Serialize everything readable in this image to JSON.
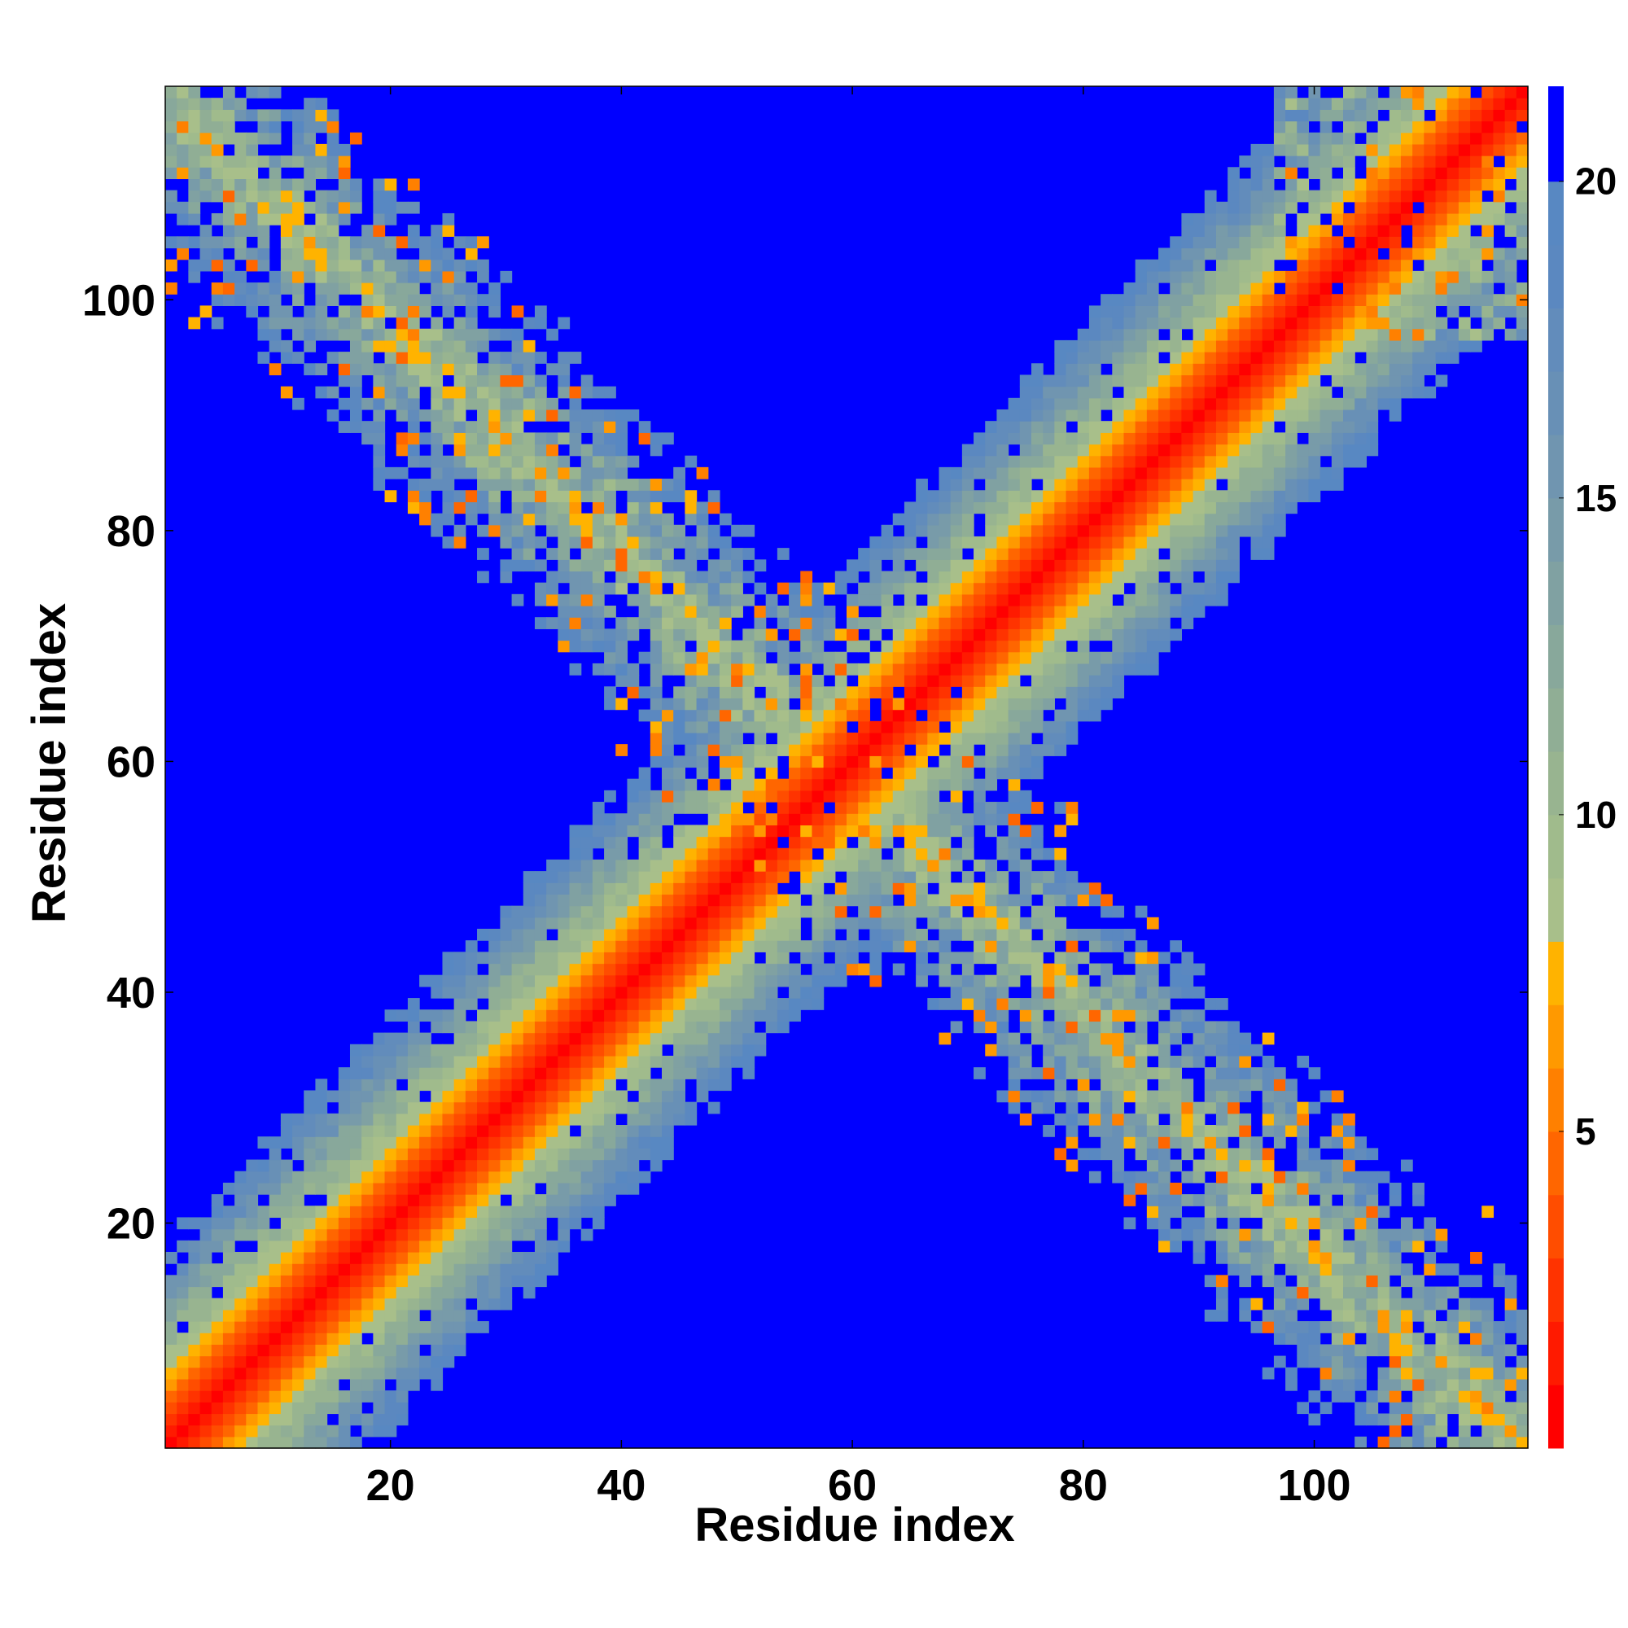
{
  "chart_data": {
    "type": "heatmap",
    "title": "",
    "xlabel": "Residue index",
    "ylabel": "Residue index",
    "n_residues": 118,
    "xlim": [
      1,
      118
    ],
    "ylim": [
      1,
      118
    ],
    "x_ticks": [
      20,
      40,
      60,
      80,
      100
    ],
    "y_ticks": [
      20,
      40,
      60,
      80,
      100
    ],
    "colorbar": {
      "range": [
        0,
        21.5
      ],
      "ticks": [
        5,
        10,
        15,
        20
      ],
      "levels": [
        {
          "max": 1,
          "color": "#ff0000"
        },
        {
          "max": 2,
          "color": "#ff1a00"
        },
        {
          "max": 3,
          "color": "#ff3300"
        },
        {
          "max": 4,
          "color": "#ff4d00"
        },
        {
          "max": 5,
          "color": "#ff6600"
        },
        {
          "max": 6,
          "color": "#ff8000"
        },
        {
          "max": 7,
          "color": "#ff9900"
        },
        {
          "max": 8,
          "color": "#ffb300"
        },
        {
          "max": 9,
          "color": "#a8bf8a"
        },
        {
          "max": 10,
          "color": "#a0bb8c"
        },
        {
          "max": 11,
          "color": "#98b490"
        },
        {
          "max": 12,
          "color": "#90ae95"
        },
        {
          "max": 13,
          "color": "#88a89b"
        },
        {
          "max": 14,
          "color": "#80a1a2"
        },
        {
          "max": 15,
          "color": "#789ba9"
        },
        {
          "max": 16,
          "color": "#7095b0"
        },
        {
          "max": 17,
          "color": "#6890b6"
        },
        {
          "max": 18,
          "color": "#628cbb"
        },
        {
          "max": 19,
          "color": "#5b88c0"
        },
        {
          "max": 20,
          "color": "#5888c2"
        },
        {
          "max": 21.5,
          "color": "#0000ff"
        }
      ]
    },
    "description_of_data": "Symmetric inter-residue distance map: diagonal band with values near 0 (red), widening to ~10-18 (green/steel-blue) away from diagonal; second anti-diagonal cluster of short distances centered near residue 50-55 extending to corners (1-20 vs 95-118); all other pairs saturated at >20 (blue)."
  }
}
